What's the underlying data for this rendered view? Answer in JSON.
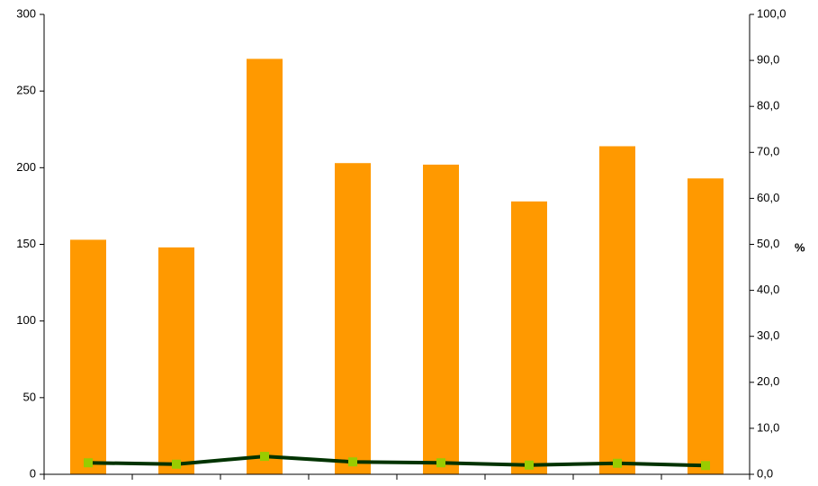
{
  "chart_data": {
    "type": "bar",
    "categories": [
      "",
      "",
      "",
      "",
      "",
      "",
      "",
      ""
    ],
    "series": [
      {
        "values": [
          153,
          148,
          271,
          203,
          202,
          178,
          214,
          193
        ],
        "type": "bar",
        "axis": "left"
      },
      {
        "values": [
          2.5,
          2.2,
          3.9,
          2.7,
          2.5,
          2.0,
          2.4,
          1.9
        ],
        "type": "line",
        "axis": "right"
      }
    ],
    "left_axis": {
      "ylim": [
        0,
        300
      ],
      "ticks": [
        "0",
        "50",
        "100",
        "150",
        "200",
        "250",
        "300"
      ],
      "tick_values": [
        0,
        50,
        100,
        150,
        200,
        250,
        300
      ],
      "ylabel": ""
    },
    "right_axis": {
      "ylim": [
        0,
        100
      ],
      "ticks": [
        "0,0",
        "10,0",
        "20,0",
        "30,0",
        "40,0",
        "50,0",
        "60,0",
        "70,0",
        "80,0",
        "90,0",
        "100,0"
      ],
      "tick_values": [
        0,
        10,
        20,
        30,
        40,
        50,
        60,
        70,
        80,
        90,
        100
      ],
      "ylabel": "%"
    },
    "grid": false,
    "legend": "none",
    "colors": {
      "bars": "#ff9900",
      "line": "#003300",
      "markers": "#99cc00",
      "axis": "#000000"
    }
  }
}
